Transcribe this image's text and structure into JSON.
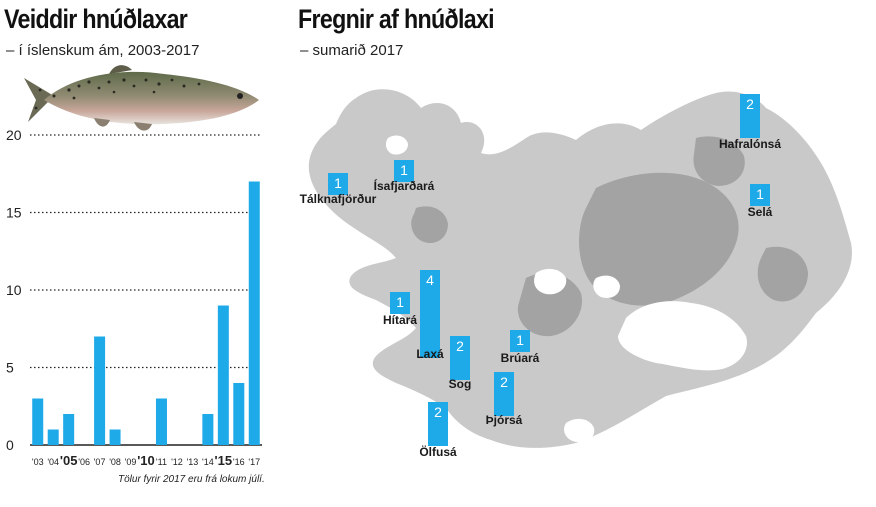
{
  "left": {
    "title": "Veiddir hnúðlaxar",
    "subtitle": "– í íslenskum ám, 2003-2017",
    "note": "Tölur fyrir 2017 eru frá lokum júlí.",
    "fish_icon": "salmon-icon"
  },
  "right": {
    "title": "Fregnir af hnúðlaxi",
    "subtitle": "– sumarið 2017",
    "map_icon": "iceland-map"
  },
  "colors": {
    "bar": "#1ea9e8",
    "map_light": "#c9c9c9",
    "map_dark": "#9c9c9c",
    "text": "#1a1a1a"
  },
  "chart_data": [
    {
      "type": "bar",
      "title": "Veiddir hnúðlaxar",
      "subtitle": "– í íslenskum ám, 2003-2017",
      "categories": [
        "'03",
        "'04",
        "'05",
        "'06",
        "'07",
        "'08",
        "'09",
        "'10",
        "'11",
        "'12",
        "'13",
        "'14",
        "'15",
        "'16",
        "'17"
      ],
      "emphasized_categories": [
        "'05",
        "'10",
        "'15"
      ],
      "values": [
        3,
        1,
        2,
        0,
        7,
        1,
        0,
        0,
        3,
        0,
        0,
        2,
        9,
        4,
        17
      ],
      "ylim": [
        0,
        20
      ],
      "yticks": [
        0,
        5,
        10,
        15,
        20
      ],
      "grid": "horizontal dotted",
      "xlabel": "",
      "ylabel": ""
    },
    {
      "type": "bar",
      "title": "Fregnir af hnúðlaxi",
      "subtitle": "– sumarið 2017",
      "note": "small bars placed on map of Iceland",
      "categories": [
        "Tálknafjörður",
        "Ísafjarðará",
        "Hafralónsá",
        "Selá",
        "Hítará",
        "Laxá",
        "Sog",
        "Brúará",
        "Þjórsá",
        "Ölfusá"
      ],
      "values": [
        1,
        1,
        2,
        1,
        1,
        4,
        2,
        1,
        2,
        2
      ]
    }
  ]
}
